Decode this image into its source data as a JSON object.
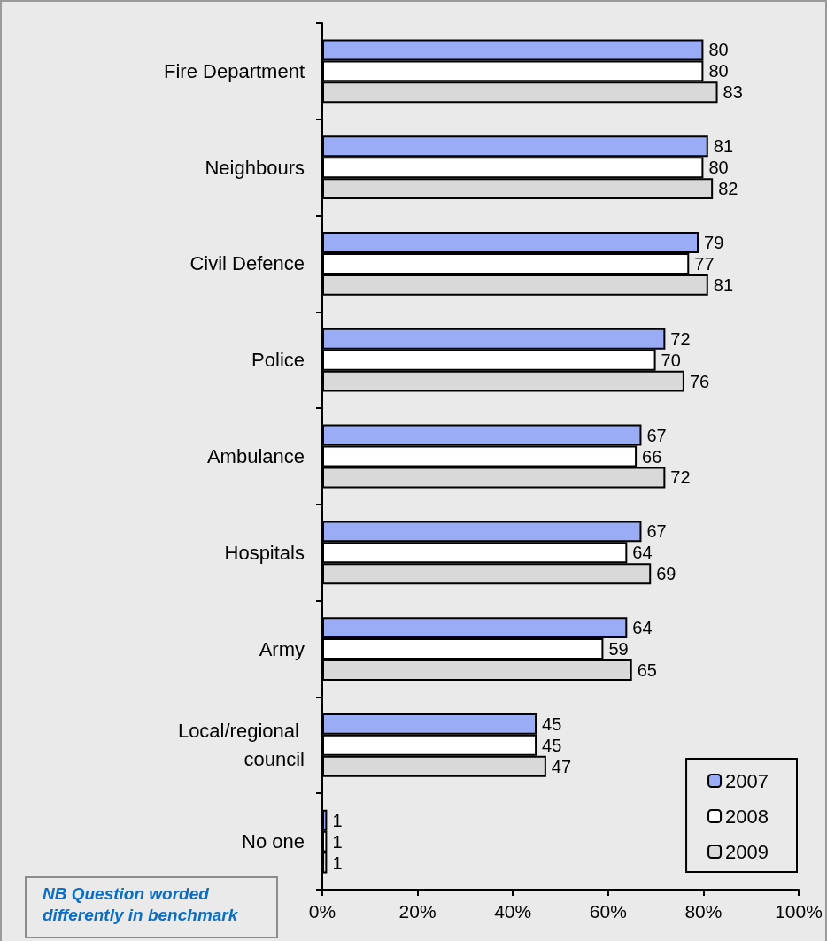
{
  "chart_data": {
    "type": "bar",
    "orientation": "horizontal",
    "categories": [
      "Fire Department",
      "Neighbours",
      "Civil Defence",
      "Police",
      "Ambulance",
      "Hospitals",
      "Army",
      "Local/regional council",
      "No one"
    ],
    "series": [
      {
        "name": "2007",
        "color": "#9aacf5",
        "values": [
          80,
          81,
          79,
          72,
          67,
          67,
          64,
          45,
          1
        ]
      },
      {
        "name": "2008",
        "color": "#ffffff",
        "values": [
          80,
          80,
          77,
          70,
          66,
          64,
          59,
          45,
          1
        ]
      },
      {
        "name": "2009",
        "color": "#d9d9d9",
        "values": [
          83,
          82,
          81,
          76,
          72,
          69,
          65,
          47,
          1
        ]
      }
    ],
    "xlim": [
      0,
      100
    ],
    "xticks": [
      {
        "value": 0,
        "label": "0%"
      },
      {
        "value": 20,
        "label": "20%"
      },
      {
        "value": 40,
        "label": "40%"
      },
      {
        "value": 60,
        "label": "60%"
      },
      {
        "value": 80,
        "label": "80%"
      },
      {
        "value": 100,
        "label": "100%"
      }
    ],
    "data_labels": true,
    "legend": "bottom right",
    "annotations": [
      "NB Question worded differently in benchmark"
    ]
  }
}
